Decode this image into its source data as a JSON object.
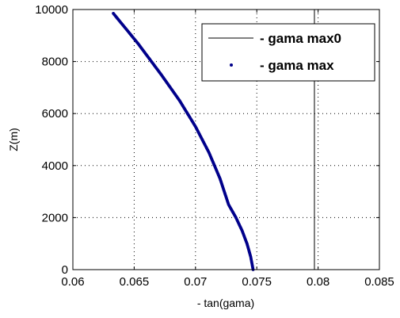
{
  "chart_data": {
    "type": "line",
    "title": "",
    "xlabel": "- tan(gama)",
    "ylabel": "Z(m)",
    "xlim": [
      0.06,
      0.085
    ],
    "ylim": [
      0,
      10000
    ],
    "xticks": [
      0.06,
      0.065,
      0.07,
      0.075,
      0.08,
      0.085
    ],
    "xtick_labels": [
      "0.06",
      "0.065",
      "0.07",
      "0.075",
      "0.08",
      "0.085"
    ],
    "yticks": [
      0,
      2000,
      4000,
      6000,
      8000,
      10000
    ],
    "ytick_labels": [
      "0",
      "2000",
      "4000",
      "6000",
      "8000",
      "10000"
    ],
    "grid": true,
    "legend_position": "top-right",
    "series": [
      {
        "name": "- gama max0",
        "style": "line",
        "color": "#000000",
        "x": [
          0.0797,
          0.0797
        ],
        "y": [
          0,
          10000
        ]
      },
      {
        "name": "- gama max",
        "style": "points",
        "color": "#00008B",
        "x": [
          0.0747,
          0.0745,
          0.0742,
          0.0738,
          0.0733,
          0.0727,
          0.072,
          0.0711,
          0.07,
          0.0687,
          0.0672,
          0.0653,
          0.0633
        ],
        "y": [
          0,
          500,
          1000,
          1500,
          2000,
          2500,
          3500,
          4500,
          5500,
          6500,
          7500,
          8700,
          9850
        ]
      }
    ]
  }
}
